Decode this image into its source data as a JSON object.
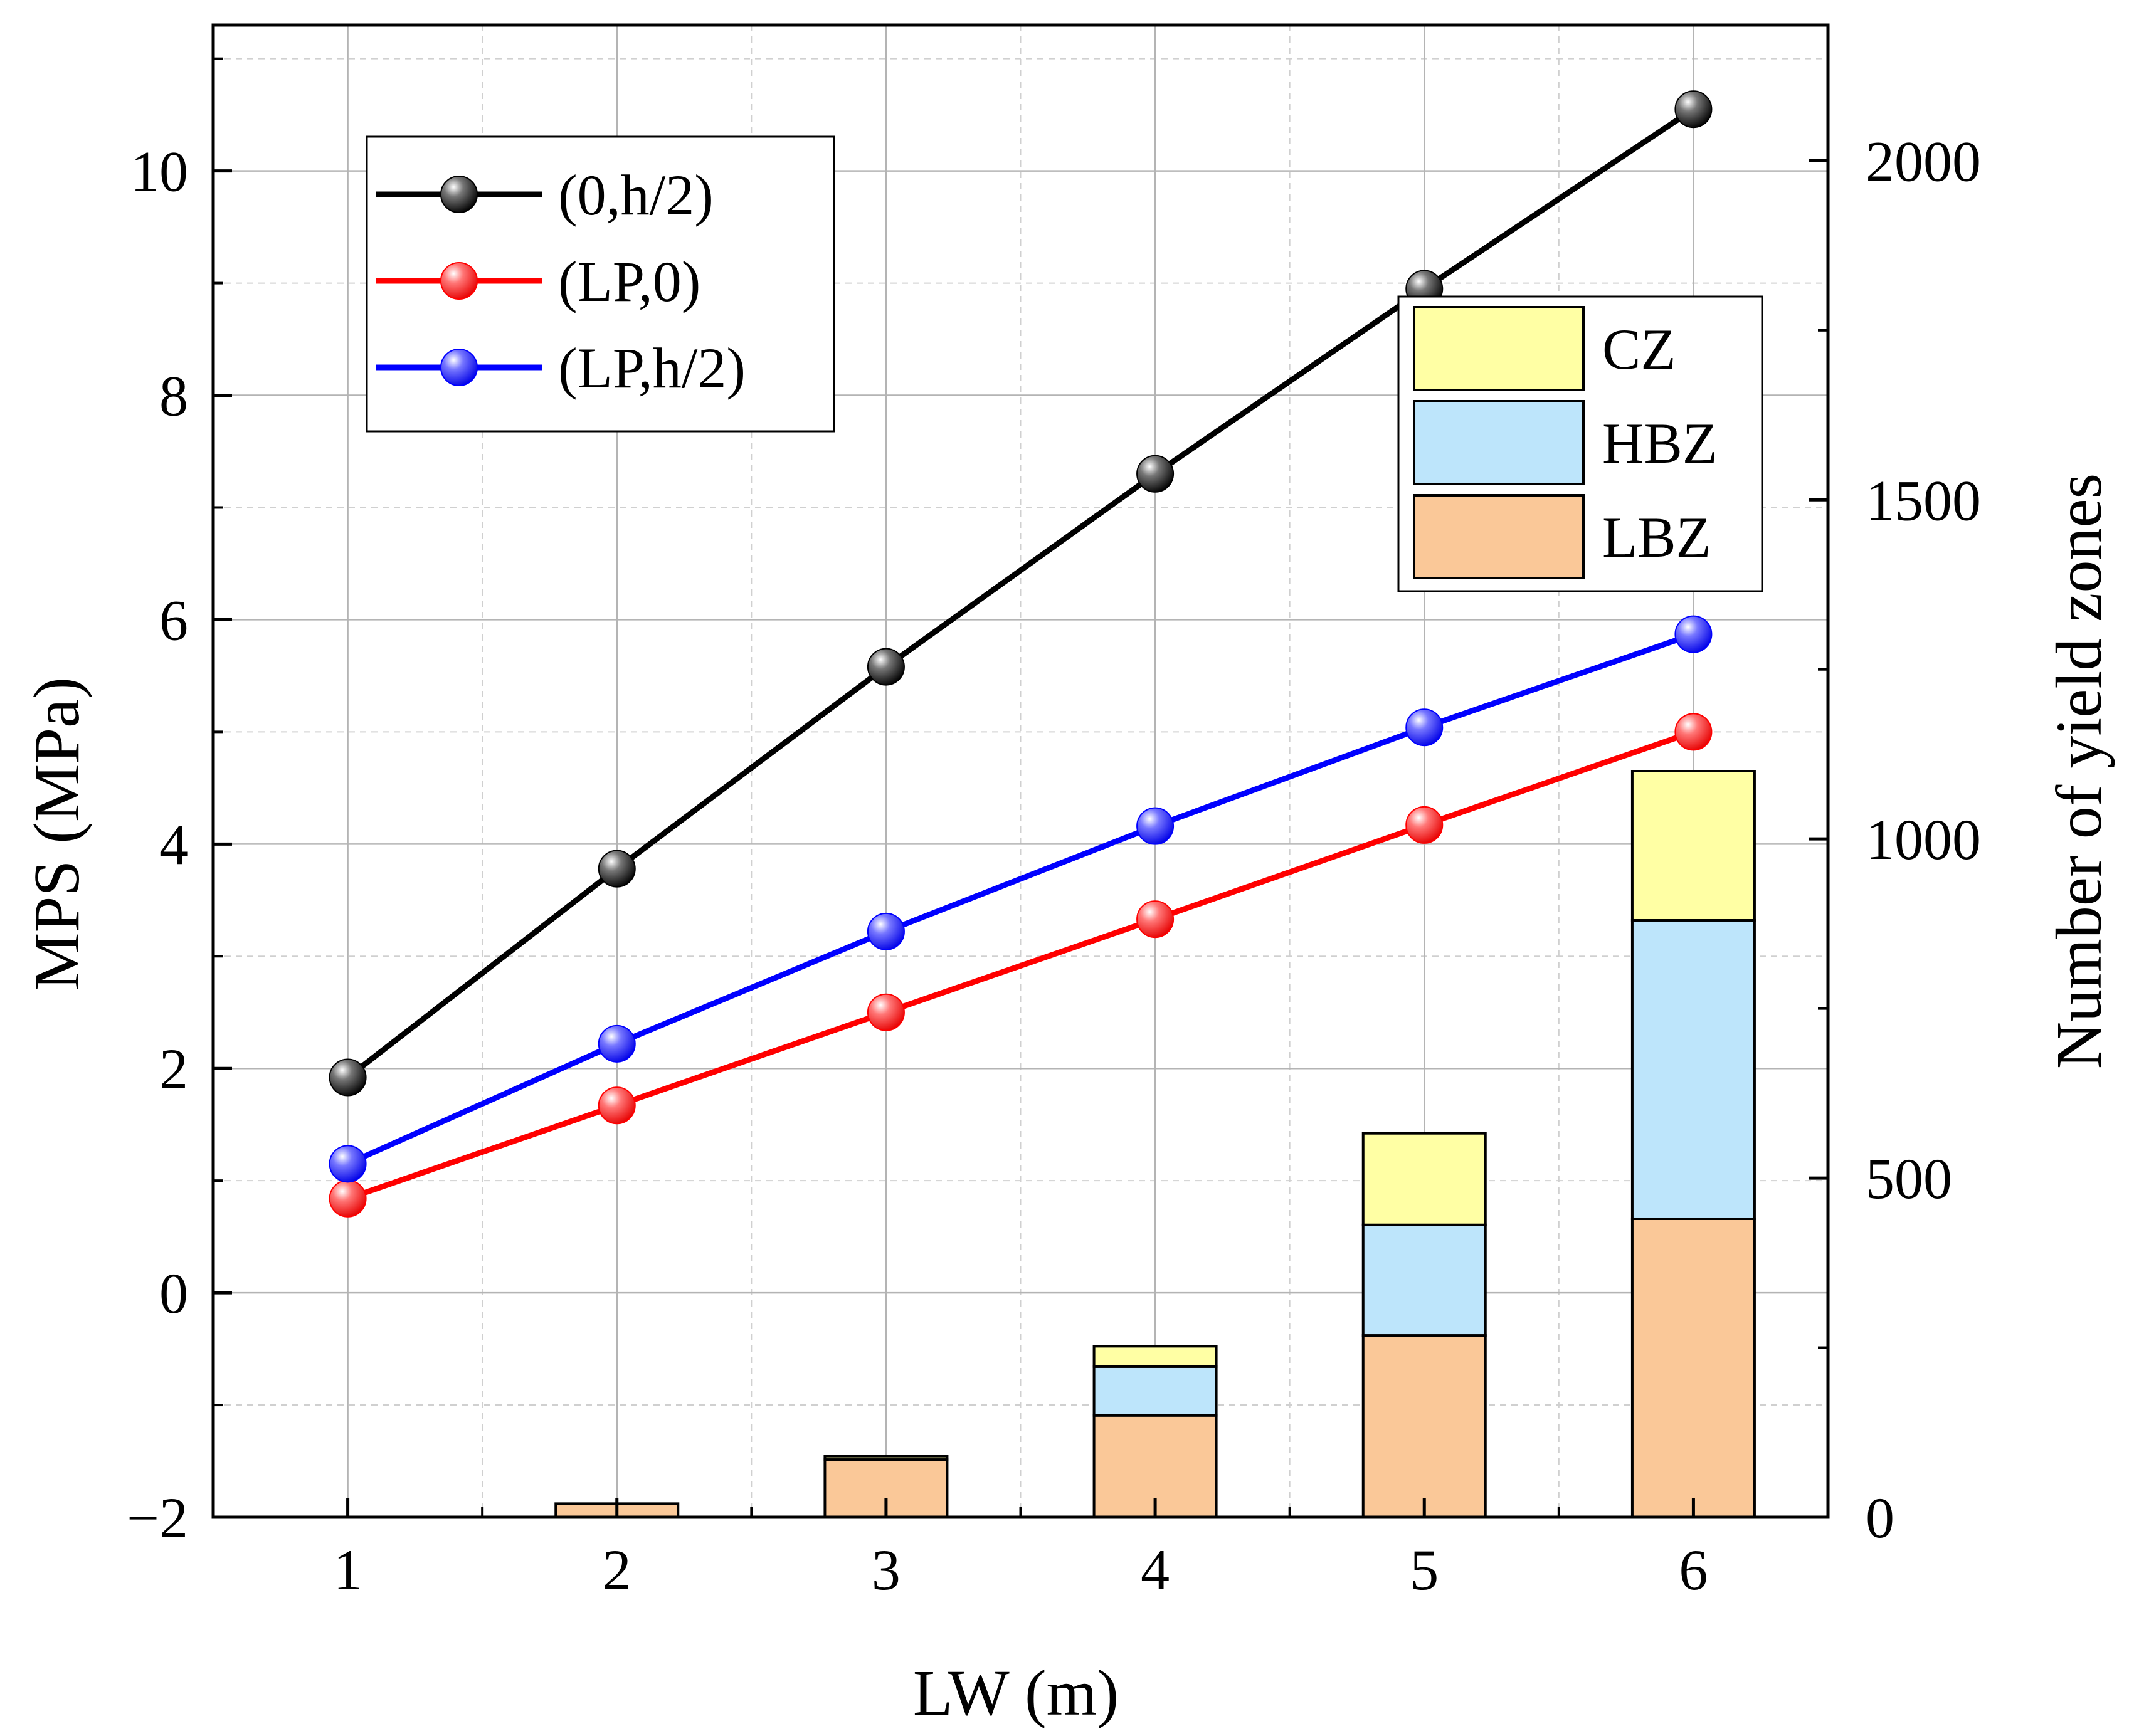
{
  "chart_data": {
    "type": "line+stacked-bar",
    "x": [
      1,
      2,
      3,
      4,
      5,
      6
    ],
    "xlabel": "LW (m)",
    "ylabel_left": "MPS (MPa)",
    "ylabel_right": "Number of yield zones",
    "xlim": [
      0.5,
      6.5
    ],
    "ylim_left": [
      -2,
      11.3
    ],
    "ylim_right": [
      0,
      2200
    ],
    "x_ticks": [
      "1",
      "2",
      "3",
      "4",
      "5",
      "6"
    ],
    "y_left_ticks": [
      {
        "v": -2,
        "label": "−2"
      },
      {
        "v": 0,
        "label": "0"
      },
      {
        "v": 2,
        "label": "2"
      },
      {
        "v": 4,
        "label": "4"
      },
      {
        "v": 6,
        "label": "6"
      },
      {
        "v": 8,
        "label": "8"
      },
      {
        "v": 10,
        "label": "10"
      }
    ],
    "y_right_ticks": [
      {
        "v": 0,
        "label": "0"
      },
      {
        "v": 500,
        "label": "500"
      },
      {
        "v": 1000,
        "label": "1000"
      },
      {
        "v": 1500,
        "label": "1500"
      },
      {
        "v": 2000,
        "label": "2000"
      }
    ],
    "grid": true,
    "line_series": [
      {
        "name": "(0,h/2)",
        "color": "#000000",
        "values": [
          1.92,
          3.78,
          5.58,
          7.3,
          8.95,
          10.55
        ]
      },
      {
        "name": "(LP,0)",
        "color": "#ff0000",
        "values": [
          0.84,
          1.67,
          2.5,
          3.33,
          4.17,
          5.0
        ]
      },
      {
        "name": "(LP,h/2)",
        "color": "#0000ff",
        "values": [
          1.15,
          2.22,
          3.22,
          4.16,
          5.04,
          5.87
        ]
      }
    ],
    "bar_series": [
      {
        "name": "LBZ",
        "color": "#fac898",
        "values": [
          0,
          20,
          85,
          150,
          268,
          440
        ]
      },
      {
        "name": "HBZ",
        "color": "#bde5fb",
        "values": [
          0,
          0,
          0,
          72,
          163,
          440
        ]
      },
      {
        "name": "CZ",
        "color": "#ffffa4",
        "values": [
          0,
          0,
          5,
          30,
          135,
          220
        ]
      }
    ],
    "line_legend_position": "top-left",
    "bar_legend_position": "top-right",
    "bar_legend_order": [
      "CZ",
      "HBZ",
      "LBZ"
    ]
  }
}
